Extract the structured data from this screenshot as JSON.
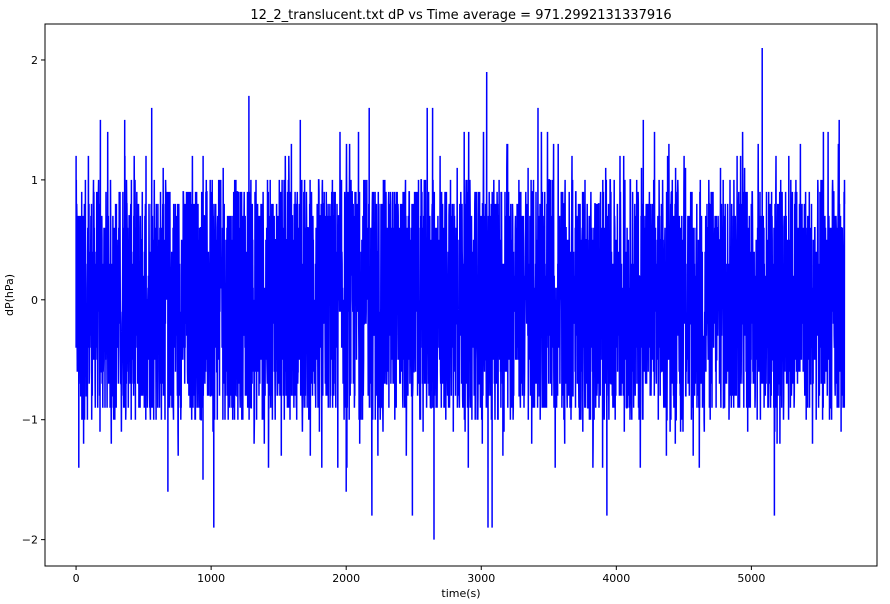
{
  "chart_data": {
    "type": "line",
    "title": "12_2_translucent.txt  dP vs Time  average = 971.2992131337916",
    "xlabel": "time(s)",
    "ylabel": "dP(hPa)",
    "xlim": [
      -230,
      5930
    ],
    "ylim": [
      -2.22,
      2.3
    ],
    "x_ticks": [
      0,
      1000,
      2000,
      3000,
      4000,
      5000
    ],
    "y_ticks": [
      -2,
      -1,
      0,
      1,
      2
    ],
    "x_tick_labels": [
      "0",
      "1000",
      "2000",
      "3000",
      "4000",
      "5000"
    ],
    "y_tick_labels": [
      "−2",
      "−1",
      "0",
      "1",
      "2"
    ],
    "grid": false,
    "legend": "none",
    "series": [
      {
        "color": "#0000ff",
        "x_start": 0,
        "x_end": 5690,
        "typical_range": [
          -1.0,
          1.0
        ],
        "peaks": [
          {
            "x": 0,
            "y": 1.2
          },
          {
            "x": 20,
            "y": -1.4
          },
          {
            "x": 180,
            "y": 1.5
          },
          {
            "x": 360,
            "y": 1.5
          },
          {
            "x": 560,
            "y": 1.6
          },
          {
            "x": 680,
            "y": -1.6
          },
          {
            "x": 940,
            "y": -1.5
          },
          {
            "x": 1020,
            "y": -1.9
          },
          {
            "x": 1280,
            "y": 1.7
          },
          {
            "x": 1660,
            "y": 1.5
          },
          {
            "x": 2000,
            "y": -1.6
          },
          {
            "x": 2170,
            "y": 1.6
          },
          {
            "x": 2190,
            "y": -1.8
          },
          {
            "x": 2490,
            "y": -1.8
          },
          {
            "x": 2600,
            "y": 1.6
          },
          {
            "x": 2640,
            "y": 1.6
          },
          {
            "x": 2650,
            "y": -2.0
          },
          {
            "x": 3040,
            "y": 1.9
          },
          {
            "x": 3050,
            "y": -1.9
          },
          {
            "x": 3080,
            "y": -1.9
          },
          {
            "x": 3420,
            "y": 1.6
          },
          {
            "x": 3930,
            "y": -1.8
          },
          {
            "x": 4200,
            "y": 1.5
          },
          {
            "x": 5080,
            "y": 2.1
          },
          {
            "x": 5170,
            "y": -1.8
          },
          {
            "x": 5650,
            "y": 1.5
          },
          {
            "x": 5690,
            "y": 0.8
          }
        ]
      }
    ]
  }
}
